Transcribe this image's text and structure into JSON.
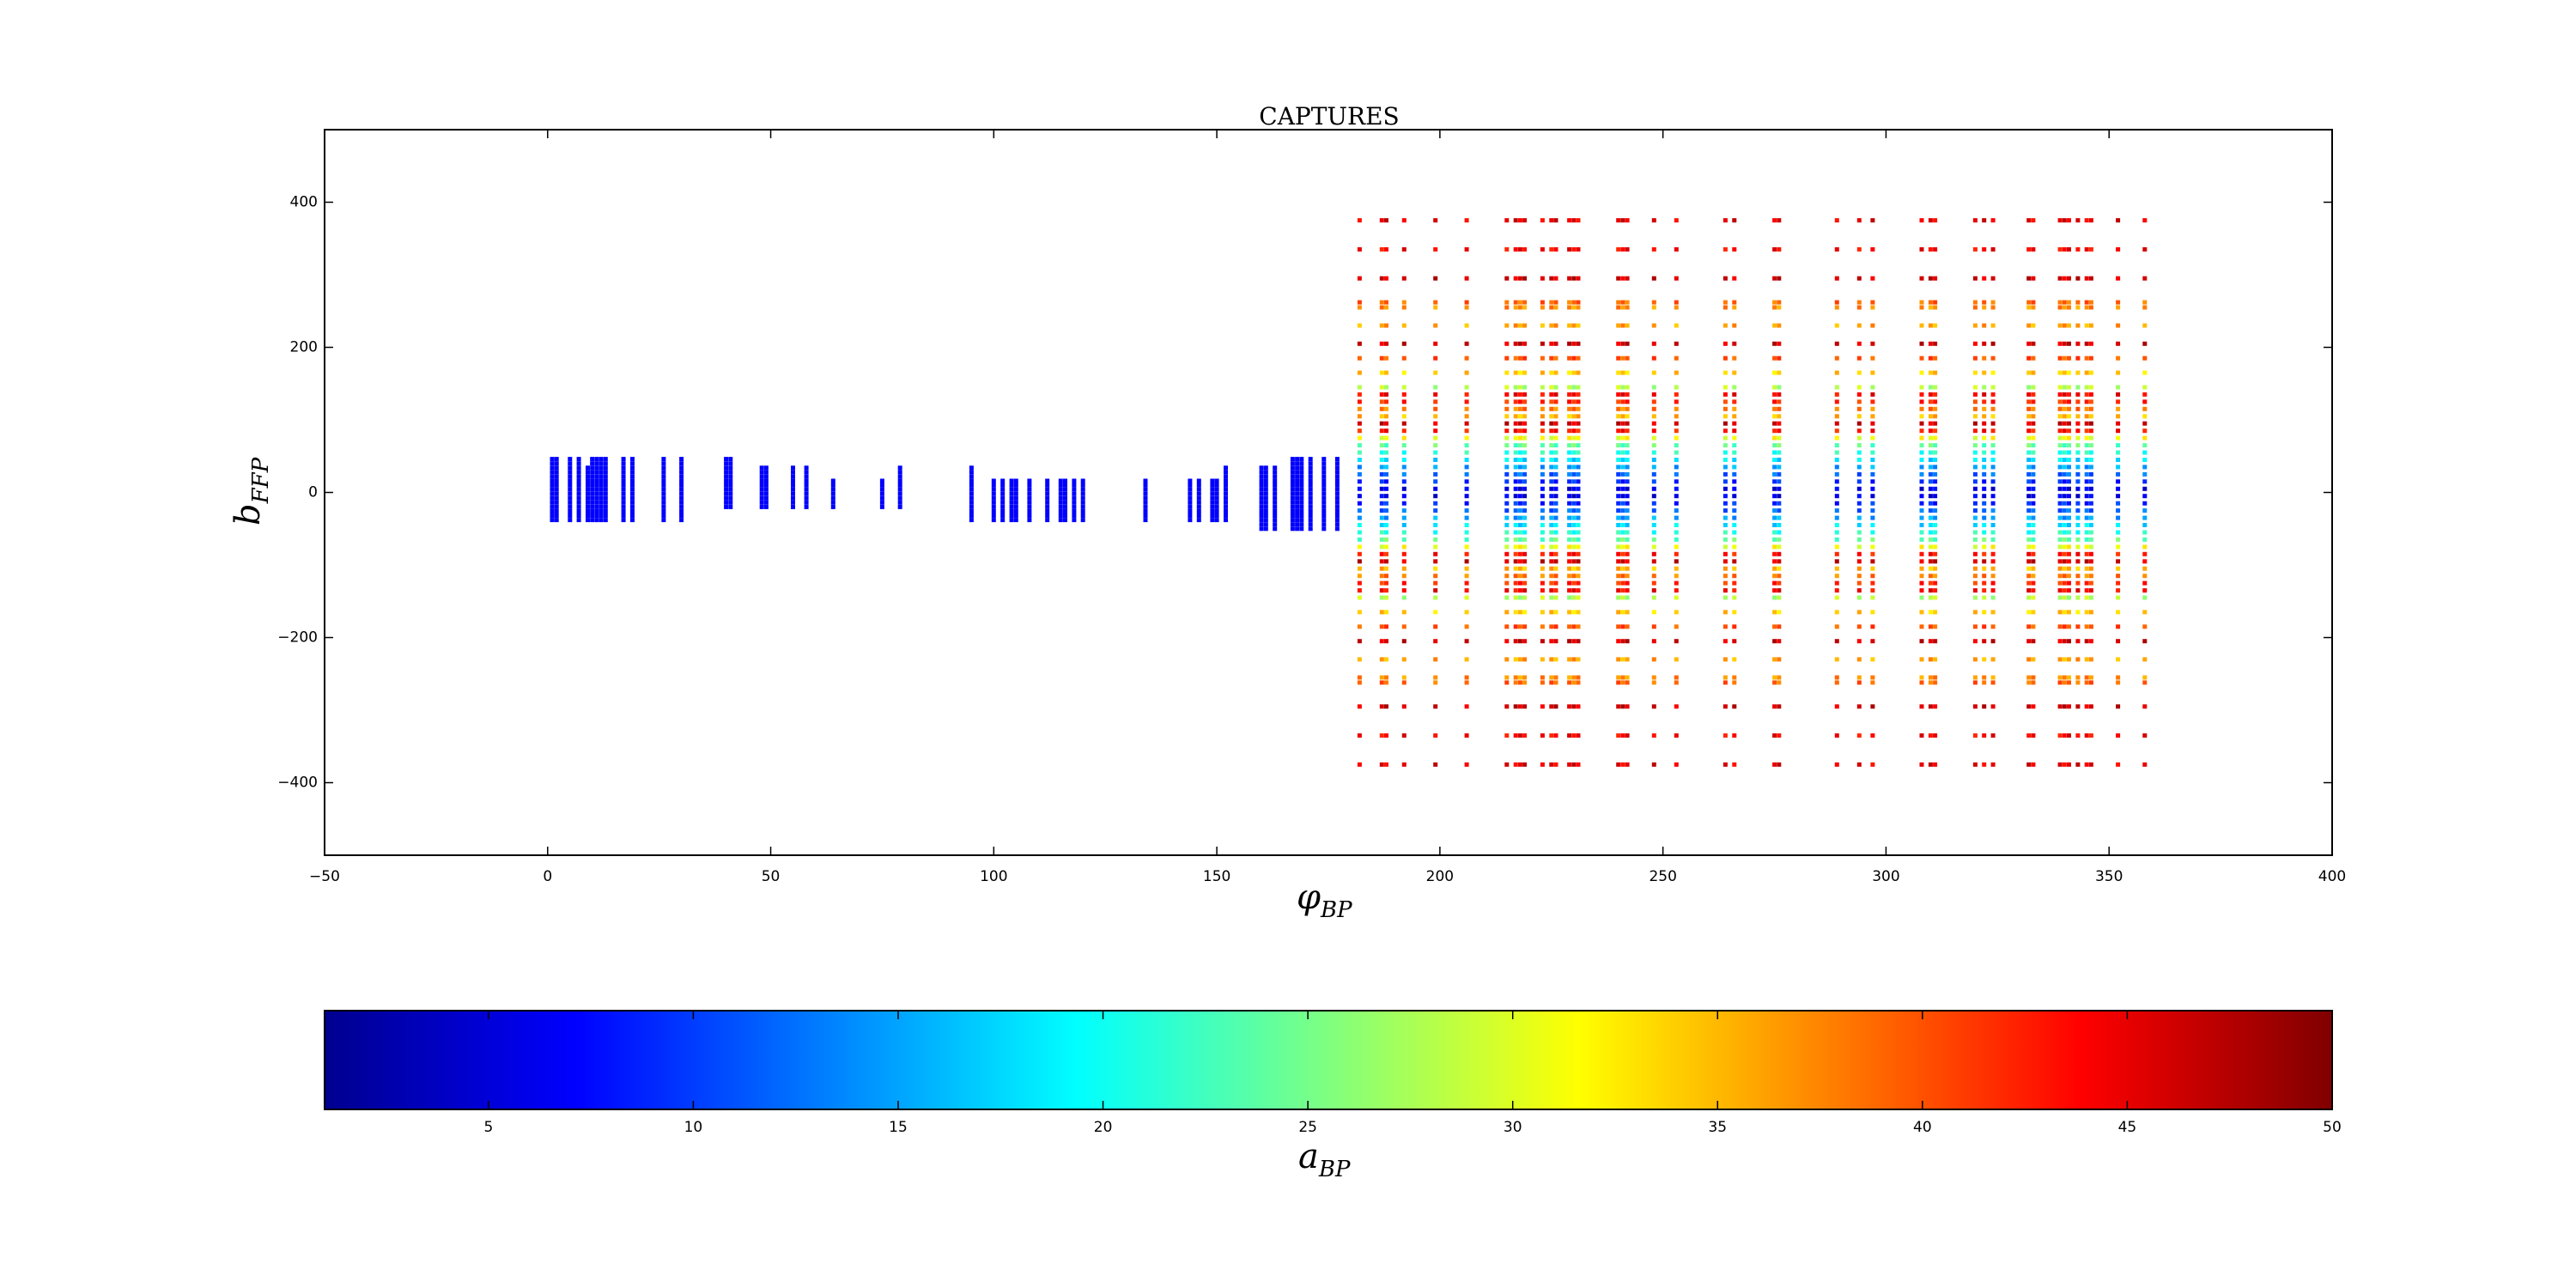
{
  "chart_data": {
    "type": "scatter",
    "title": "CAPTURES",
    "xlabel": {
      "base": "φ",
      "sub": "BP"
    },
    "ylabel": {
      "base": "b",
      "sub": "FFP"
    },
    "xlim": [
      -50,
      400
    ],
    "ylim": [
      -500,
      500
    ],
    "xticks": [
      -50,
      0,
      50,
      100,
      150,
      200,
      250,
      300,
      350,
      400
    ],
    "yticks": [
      -400,
      -200,
      0,
      200,
      400
    ],
    "xtick_labels": [
      "−50",
      "0",
      "50",
      "100",
      "150",
      "200",
      "250",
      "300",
      "350",
      "400"
    ],
    "ytick_labels": [
      "−400",
      "−200",
      "0",
      "200",
      "400"
    ],
    "grid": false,
    "colormap": "jet",
    "colorbar": {
      "label": {
        "base": "a",
        "sub": "BP"
      },
      "range": [
        1,
        50
      ],
      "ticks": [
        5,
        10,
        15,
        20,
        25,
        30,
        35,
        40,
        45,
        50
      ],
      "tick_labels": [
        "5",
        "10",
        "15",
        "20",
        "25",
        "30",
        "35",
        "40",
        "45",
        "50"
      ],
      "orientation": "horizontal"
    },
    "series_low": {
      "description_visible": "blue points, a ≈ 5–8, at φ < 180",
      "x_columns": [
        1,
        2,
        5,
        7,
        9,
        10,
        11,
        12,
        13,
        17,
        19,
        26,
        30,
        40,
        41,
        48,
        49,
        55,
        58,
        64,
        75,
        79,
        95,
        100,
        102,
        104,
        105,
        108,
        112,
        115,
        116,
        118,
        120,
        134,
        144,
        146,
        149,
        150,
        152,
        160,
        161,
        163,
        167,
        168,
        169,
        171,
        174,
        177
      ],
      "b_max": [
        50,
        50,
        50,
        50,
        35,
        50,
        50,
        50,
        50,
        50,
        50,
        50,
        50,
        50,
        50,
        38,
        38,
        38,
        38,
        18,
        18,
        38,
        38,
        18,
        18,
        18,
        18,
        18,
        18,
        18,
        18,
        18,
        18,
        18,
        18,
        18,
        18,
        18,
        38,
        38,
        38,
        38,
        50,
        50,
        50,
        50,
        50,
        50
      ],
      "b_min": [
        -38,
        -38,
        -38,
        -38,
        -38,
        -38,
        -38,
        -38,
        -38,
        -38,
        -38,
        -38,
        -38,
        -20,
        -20,
        -20,
        -20,
        -20,
        -20,
        -20,
        -20,
        -20,
        -38,
        -38,
        -38,
        -38,
        -38,
        -38,
        -38,
        -38,
        -38,
        -38,
        -38,
        -38,
        -38,
        -38,
        -38,
        -38,
        -38,
        -50,
        -50,
        -50,
        -50,
        -50,
        -50,
        -50,
        -50,
        -50
      ],
      "a_value": 7
    },
    "series_high": {
      "description_visible": "multicolour points at φ ≥ 180, colour = a_BP",
      "x_columns": [
        182,
        187,
        188,
        192,
        199,
        206,
        215,
        217,
        218,
        219,
        223,
        225,
        226,
        229,
        230,
        231,
        240,
        241,
        242,
        248,
        253,
        264,
        266,
        275,
        276,
        289,
        294,
        297,
        308,
        310,
        311,
        320,
        322,
        324,
        332,
        333,
        339,
        340,
        341,
        343,
        345,
        346,
        352,
        358
      ],
      "rows": [
        {
          "b": 375,
          "a": 45
        },
        {
          "b": 335,
          "a": 44
        },
        {
          "b": 295,
          "a": 46
        },
        {
          "b": 262,
          "a": 39
        },
        {
          "b": 255,
          "a": 37
        },
        {
          "b": 230,
          "a": 36
        },
        {
          "b": 205,
          "a": 46
        },
        {
          "b": 185,
          "a": 40
        },
        {
          "b": 165,
          "a": 34
        },
        {
          "b": 145,
          "a": 28
        },
        {
          "b": 135,
          "a": 44
        },
        {
          "b": 125,
          "a": 42
        },
        {
          "b": 115,
          "a": 38
        },
        {
          "b": 105,
          "a": 35
        },
        {
          "b": 95,
          "a": 46
        },
        {
          "b": 85,
          "a": 43
        },
        {
          "b": 75,
          "a": 31
        },
        {
          "b": 65,
          "a": 24
        },
        {
          "b": 55,
          "a": 21
        },
        {
          "b": 45,
          "a": 18
        },
        {
          "b": 35,
          "a": 15
        },
        {
          "b": 25,
          "a": 12
        },
        {
          "b": 15,
          "a": 9
        },
        {
          "b": 5,
          "a": 6
        },
        {
          "b": -5,
          "a": 6
        },
        {
          "b": -15,
          "a": 9
        },
        {
          "b": -25,
          "a": 12
        },
        {
          "b": -35,
          "a": 15
        },
        {
          "b": -45,
          "a": 18
        },
        {
          "b": -55,
          "a": 21
        },
        {
          "b": -65,
          "a": 24
        },
        {
          "b": -75,
          "a": 31
        },
        {
          "b": -85,
          "a": 43
        },
        {
          "b": -95,
          "a": 46
        },
        {
          "b": -105,
          "a": 35
        },
        {
          "b": -115,
          "a": 38
        },
        {
          "b": -125,
          "a": 42
        },
        {
          "b": -135,
          "a": 44
        },
        {
          "b": -145,
          "a": 28
        },
        {
          "b": -165,
          "a": 34
        },
        {
          "b": -185,
          "a": 40
        },
        {
          "b": -205,
          "a": 46
        },
        {
          "b": -230,
          "a": 36
        },
        {
          "b": -255,
          "a": 37
        },
        {
          "b": -262,
          "a": 39
        },
        {
          "b": -295,
          "a": 46
        },
        {
          "b": -335,
          "a": 44
        },
        {
          "b": -375,
          "a": 45
        }
      ]
    }
  }
}
